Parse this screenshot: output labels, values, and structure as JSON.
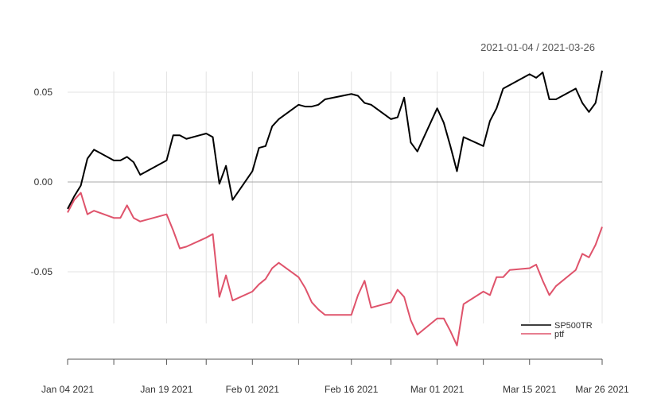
{
  "chart_data": {
    "type": "line",
    "title": "",
    "date_range_label": "2021-01-04 / 2021-03-26",
    "xlabel": "",
    "ylabel": "",
    "xlim": [
      "2021-01-04",
      "2021-03-26"
    ],
    "ylim": [
      -0.1,
      0.07
    ],
    "grid": true,
    "legend_position": "bottom-right",
    "y_ticks": [
      {
        "value": 0.05,
        "label": "0.05"
      },
      {
        "value": 0.0,
        "label": "0.00"
      },
      {
        "value": -0.05,
        "label": "-0.05"
      }
    ],
    "x_ticks": [
      {
        "date": "2021-01-04",
        "label": "Jan 04 2021"
      },
      {
        "date": "2021-01-19",
        "label": "Jan 19 2021"
      },
      {
        "date": "2021-02-01",
        "label": "Feb 01 2021"
      },
      {
        "date": "2021-02-16",
        "label": "Feb 16 2021"
      },
      {
        "date": "2021-03-01",
        "label": "Mar 01 2021"
      },
      {
        "date": "2021-03-15",
        "label": "Mar 15 2021"
      },
      {
        "date": "2021-03-26",
        "label": "Mar 26 2021"
      }
    ],
    "minor_x_ticks": [
      "2021-01-11",
      "2021-01-25",
      "2021-02-08",
      "2021-02-22",
      "2021-03-08"
    ],
    "series": [
      {
        "name": "SP500TR",
        "color": "#000000",
        "points": [
          [
            "2021-01-04",
            -0.015
          ],
          [
            "2021-01-05",
            -0.008
          ],
          [
            "2021-01-06",
            -0.002
          ],
          [
            "2021-01-07",
            0.013
          ],
          [
            "2021-01-08",
            0.018
          ],
          [
            "2021-01-11",
            0.012
          ],
          [
            "2021-01-12",
            0.012
          ],
          [
            "2021-01-13",
            0.014
          ],
          [
            "2021-01-14",
            0.011
          ],
          [
            "2021-01-15",
            0.004
          ],
          [
            "2021-01-19",
            0.012
          ],
          [
            "2021-01-20",
            0.026
          ],
          [
            "2021-01-21",
            0.026
          ],
          [
            "2021-01-22",
            0.024
          ],
          [
            "2021-01-25",
            0.027
          ],
          [
            "2021-01-26",
            0.025
          ],
          [
            "2021-01-27",
            -0.001
          ],
          [
            "2021-01-28",
            0.009
          ],
          [
            "2021-01-29",
            -0.01
          ],
          [
            "2021-02-01",
            0.006
          ],
          [
            "2021-02-02",
            0.019
          ],
          [
            "2021-02-03",
            0.02
          ],
          [
            "2021-02-04",
            0.031
          ],
          [
            "2021-02-05",
            0.035
          ],
          [
            "2021-02-08",
            0.043
          ],
          [
            "2021-02-09",
            0.042
          ],
          [
            "2021-02-10",
            0.042
          ],
          [
            "2021-02-11",
            0.043
          ],
          [
            "2021-02-12",
            0.046
          ],
          [
            "2021-02-16",
            0.049
          ],
          [
            "2021-02-17",
            0.048
          ],
          [
            "2021-02-18",
            0.044
          ],
          [
            "2021-02-19",
            0.043
          ],
          [
            "2021-02-22",
            0.035
          ],
          [
            "2021-02-23",
            0.036
          ],
          [
            "2021-02-24",
            0.047
          ],
          [
            "2021-02-25",
            0.022
          ],
          [
            "2021-02-26",
            0.017
          ],
          [
            "2021-03-01",
            0.041
          ],
          [
            "2021-03-02",
            0.033
          ],
          [
            "2021-03-03",
            0.02
          ],
          [
            "2021-03-04",
            0.006
          ],
          [
            "2021-03-05",
            0.025
          ],
          [
            "2021-03-08",
            0.02
          ],
          [
            "2021-03-09",
            0.034
          ],
          [
            "2021-03-10",
            0.041
          ],
          [
            "2021-03-11",
            0.052
          ],
          [
            "2021-03-12",
            0.054
          ],
          [
            "2021-03-15",
            0.06
          ],
          [
            "2021-03-16",
            0.058
          ],
          [
            "2021-03-17",
            0.061
          ],
          [
            "2021-03-18",
            0.046
          ],
          [
            "2021-03-19",
            0.046
          ],
          [
            "2021-03-22",
            0.052
          ],
          [
            "2021-03-23",
            0.044
          ],
          [
            "2021-03-24",
            0.039
          ],
          [
            "2021-03-25",
            0.044
          ],
          [
            "2021-03-26",
            0.062
          ]
        ]
      },
      {
        "name": "ptf",
        "color": "#df536b",
        "points": [
          [
            "2021-01-04",
            -0.017
          ],
          [
            "2021-01-05",
            -0.01
          ],
          [
            "2021-01-06",
            -0.006
          ],
          [
            "2021-01-07",
            -0.018
          ],
          [
            "2021-01-08",
            -0.016
          ],
          [
            "2021-01-11",
            -0.02
          ],
          [
            "2021-01-12",
            -0.02
          ],
          [
            "2021-01-13",
            -0.013
          ],
          [
            "2021-01-14",
            -0.02
          ],
          [
            "2021-01-15",
            -0.022
          ],
          [
            "2021-01-19",
            -0.018
          ],
          [
            "2021-01-20",
            -0.027
          ],
          [
            "2021-01-21",
            -0.037
          ],
          [
            "2021-01-22",
            -0.036
          ],
          [
            "2021-01-25",
            -0.031
          ],
          [
            "2021-01-26",
            -0.029
          ],
          [
            "2021-01-27",
            -0.064
          ],
          [
            "2021-01-28",
            -0.052
          ],
          [
            "2021-01-29",
            -0.066
          ],
          [
            "2021-02-01",
            -0.061
          ],
          [
            "2021-02-02",
            -0.057
          ],
          [
            "2021-02-03",
            -0.054
          ],
          [
            "2021-02-04",
            -0.048
          ],
          [
            "2021-02-05",
            -0.045
          ],
          [
            "2021-02-08",
            -0.053
          ],
          [
            "2021-02-09",
            -0.059
          ],
          [
            "2021-02-10",
            -0.067
          ],
          [
            "2021-02-11",
            -0.071
          ],
          [
            "2021-02-12",
            -0.074
          ],
          [
            "2021-02-16",
            -0.074
          ],
          [
            "2021-02-17",
            -0.063
          ],
          [
            "2021-02-18",
            -0.055
          ],
          [
            "2021-02-19",
            -0.07
          ],
          [
            "2021-02-22",
            -0.067
          ],
          [
            "2021-02-23",
            -0.06
          ],
          [
            "2021-02-24",
            -0.064
          ],
          [
            "2021-02-25",
            -0.077
          ],
          [
            "2021-02-26",
            -0.085
          ],
          [
            "2021-03-01",
            -0.076
          ],
          [
            "2021-03-02",
            -0.076
          ],
          [
            "2021-03-03",
            -0.083
          ],
          [
            "2021-03-04",
            -0.091
          ],
          [
            "2021-03-05",
            -0.068
          ],
          [
            "2021-03-08",
            -0.061
          ],
          [
            "2021-03-09",
            -0.063
          ],
          [
            "2021-03-10",
            -0.053
          ],
          [
            "2021-03-11",
            -0.053
          ],
          [
            "2021-03-12",
            -0.049
          ],
          [
            "2021-03-15",
            -0.048
          ],
          [
            "2021-03-16",
            -0.046
          ],
          [
            "2021-03-17",
            -0.055
          ],
          [
            "2021-03-18",
            -0.063
          ],
          [
            "2021-03-19",
            -0.058
          ],
          [
            "2021-03-22",
            -0.049
          ],
          [
            "2021-03-23",
            -0.04
          ],
          [
            "2021-03-24",
            -0.042
          ],
          [
            "2021-03-25",
            -0.035
          ],
          [
            "2021-03-26",
            -0.025
          ]
        ]
      }
    ]
  }
}
